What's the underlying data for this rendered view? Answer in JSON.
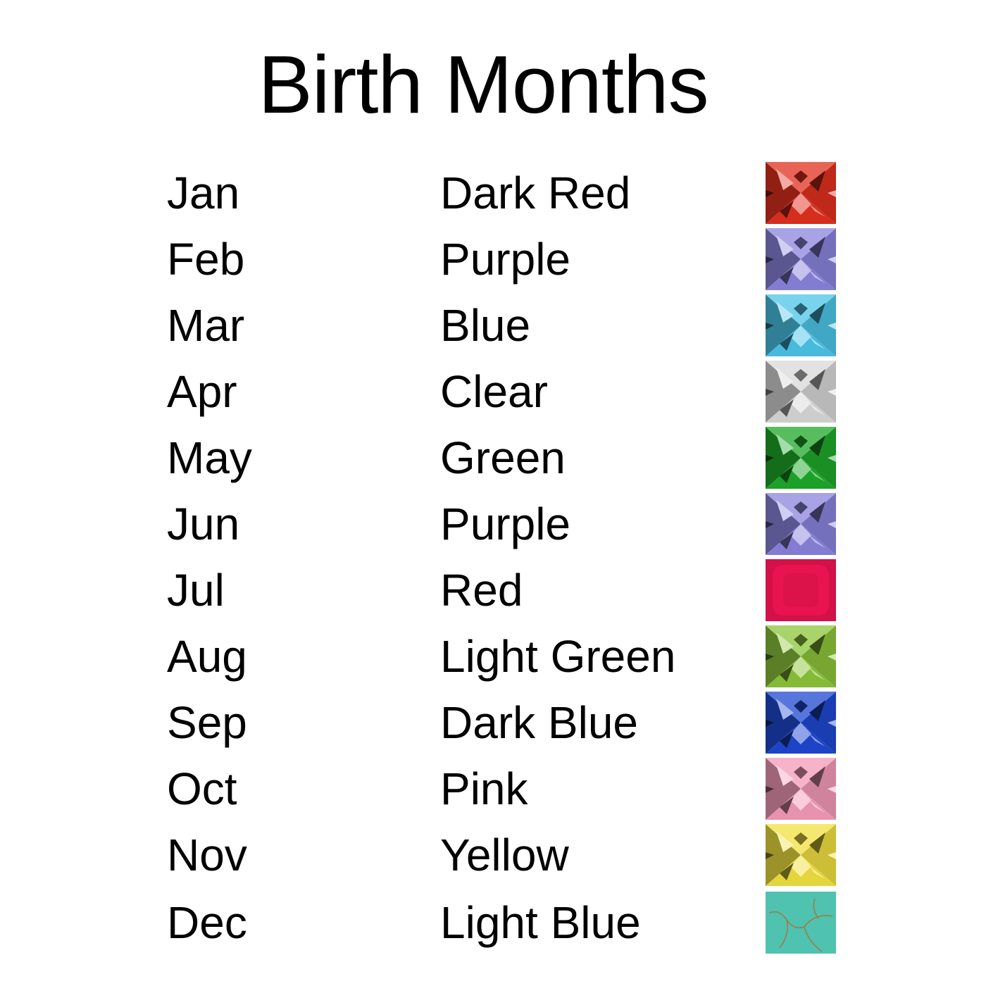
{
  "title": "Birth Months",
  "rows": [
    {
      "month": "Jan",
      "color": "Dark Red",
      "gem_hex": "#e0301e",
      "gem_style": "faceted"
    },
    {
      "month": "Feb",
      "color": "Purple",
      "gem_hex": "#8a84dc",
      "gem_style": "faceted"
    },
    {
      "month": "Mar",
      "color": "Blue",
      "gem_hex": "#4cc4e6",
      "gem_style": "faceted"
    },
    {
      "month": "Apr",
      "color": "Clear",
      "gem_hex": "#d8d8d8",
      "gem_style": "faceted"
    },
    {
      "month": "May",
      "color": "Green",
      "gem_hex": "#1fa82a",
      "gem_style": "faceted"
    },
    {
      "month": "Jun",
      "color": "Purple",
      "gem_hex": "#8a84dc",
      "gem_style": "faceted"
    },
    {
      "month": "Jul",
      "color": "Red",
      "gem_hex": "#e8134f",
      "gem_style": "smooth"
    },
    {
      "month": "Aug",
      "color": "Light Green",
      "gem_hex": "#8cc43a",
      "gem_style": "faceted"
    },
    {
      "month": "Sep",
      "color": "Dark Blue",
      "gem_hex": "#1f48d0",
      "gem_style": "faceted"
    },
    {
      "month": "Oct",
      "color": "Pink",
      "gem_hex": "#f39ab8",
      "gem_style": "faceted"
    },
    {
      "month": "Nov",
      "color": "Yellow",
      "gem_hex": "#f0e040",
      "gem_style": "faceted"
    },
    {
      "month": "Dec",
      "color": "Light Blue",
      "gem_hex": "#4fc2b0",
      "gem_style": "turquoise"
    }
  ]
}
